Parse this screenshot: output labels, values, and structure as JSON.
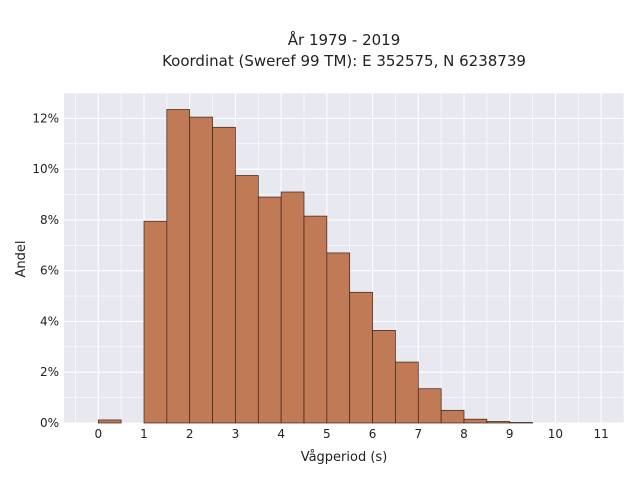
{
  "chart_data": {
    "type": "bar",
    "title": "År 1979 - 2019",
    "subtitle": "Koordinat (Sweref 99 TM): E 352575, N 6238739",
    "xlabel": "Vågperiod (s)",
    "ylabel": "Andel",
    "xlim": [
      -0.75,
      11.5
    ],
    "ylim": [
      0,
      13.0
    ],
    "x_ticks": [
      0,
      1,
      2,
      3,
      4,
      5,
      6,
      7,
      8,
      9,
      10,
      11
    ],
    "y_ticks": [
      0,
      2,
      4,
      6,
      8,
      10,
      12
    ],
    "y_tick_suffix": "%",
    "bin_width": 0.5,
    "bins": [
      {
        "x0": 0.0,
        "value": 0.12
      },
      {
        "x0": 1.0,
        "value": 7.95
      },
      {
        "x0": 1.5,
        "value": 12.35
      },
      {
        "x0": 2.0,
        "value": 12.05
      },
      {
        "x0": 2.5,
        "value": 11.65
      },
      {
        "x0": 3.0,
        "value": 9.75
      },
      {
        "x0": 3.5,
        "value": 8.9
      },
      {
        "x0": 4.0,
        "value": 9.1
      },
      {
        "x0": 4.5,
        "value": 8.15
      },
      {
        "x0": 5.0,
        "value": 6.7
      },
      {
        "x0": 5.5,
        "value": 5.15
      },
      {
        "x0": 6.0,
        "value": 3.65
      },
      {
        "x0": 6.5,
        "value": 2.4
      },
      {
        "x0": 7.0,
        "value": 1.35
      },
      {
        "x0": 7.5,
        "value": 0.5
      },
      {
        "x0": 8.0,
        "value": 0.15
      },
      {
        "x0": 8.5,
        "value": 0.06
      },
      {
        "x0": 9.0,
        "value": 0.02
      }
    ],
    "grid": true,
    "colors": {
      "bar_fill": "#c07a55",
      "bar_stroke": "#3a2418",
      "plot_bg": "#e8e8f0",
      "grid": "#ffffff"
    }
  }
}
